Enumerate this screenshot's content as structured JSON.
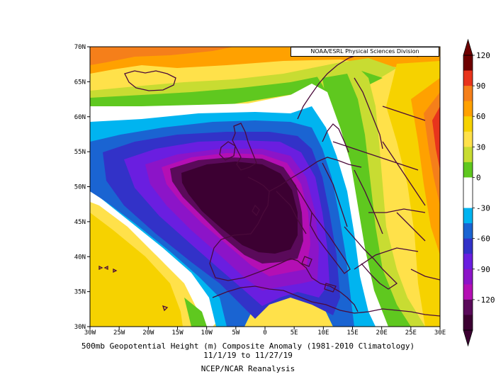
{
  "credit": "NOAA/ESRL Physical Sciences Division",
  "caption": {
    "line1": "500mb Geopotential Height (m) Composite Anomaly (1981-2010 Climatology)",
    "line2": "11/1/19  to 11/27/19",
    "line3": "NCEP/NCAR Reanalysis"
  },
  "lat_labels": [
    "70N",
    "65N",
    "60N",
    "55N",
    "50N",
    "45N",
    "40N",
    "35N",
    "30N"
  ],
  "lon_labels": [
    "30W",
    "25W",
    "20W",
    "15W",
    "10W",
    "5W",
    "0",
    "5E",
    "10E",
    "15E",
    "20E",
    "25E",
    "30E"
  ],
  "colorbar": {
    "labels": [
      "120",
      "90",
      "60",
      "30",
      "0",
      "-30",
      "-60",
      "-90",
      "-120"
    ],
    "colors": [
      "#6e0000",
      "#e8341c",
      "#f57f1a",
      "#ffa100",
      "#f6d200",
      "#ffe14a",
      "#c8dc32",
      "#5fc81f",
      "#ffffff",
      "#ffffff",
      "#00b4f0",
      "#1a64d2",
      "#3232c8",
      "#6a1ee0",
      "#8c14c8",
      "#b40fb4",
      "#5a0a5a",
      "#3c0032"
    ]
  },
  "map_colors": {
    "yellow": "#ffe14a",
    "lightyellow": "#f6d200",
    "orange": "#ffa100",
    "darkorange": "#f57f1a",
    "red": "#e8341c",
    "green": "#5fc81f",
    "lightgreen": "#c8dc32",
    "white": "#ffffff",
    "cyan": "#00b4f0",
    "blue": "#1a64d2",
    "indigo": "#3232c8",
    "violet": "#6a1ee0",
    "purple": "#8c14c8",
    "magenta": "#b40fb4",
    "plum": "#5a0a5a",
    "darkplum": "#3c0032",
    "coastline": "#4a0a3a"
  }
}
